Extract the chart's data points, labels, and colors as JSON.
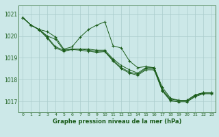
{
  "xlabel": "Graphe pression niveau de la mer (hPa)",
  "background_color": "#cce8e8",
  "line_color": "#1a5c1a",
  "grid_color_major": "#aacccc",
  "grid_color_minor": "#c8e0e0",
  "ylim": [
    1016.5,
    1021.4
  ],
  "xlim": [
    -0.5,
    23.5
  ],
  "yticks": [
    1017,
    1018,
    1019,
    1020,
    1021
  ],
  "xticks": [
    0,
    1,
    2,
    3,
    4,
    5,
    6,
    7,
    8,
    9,
    10,
    11,
    12,
    13,
    14,
    15,
    16,
    17,
    18,
    19,
    20,
    21,
    22,
    23
  ],
  "series": [
    [
      1020.85,
      1020.5,
      1020.3,
      1020.2,
      1019.95,
      1019.4,
      1019.5,
      1019.95,
      1020.3,
      1020.5,
      1020.65,
      1019.55,
      1019.45,
      1018.85,
      1018.55,
      1018.6,
      1018.55,
      1017.65,
      1017.15,
      1017.05,
      1017.05,
      1017.3,
      1017.4,
      1017.4
    ],
    [
      1020.85,
      1020.5,
      1020.3,
      1020.0,
      1019.85,
      1019.35,
      1019.4,
      1019.4,
      1019.4,
      1019.35,
      1019.35,
      1018.95,
      1018.65,
      1018.45,
      1018.3,
      1018.55,
      1018.55,
      1017.55,
      1017.1,
      1017.05,
      1017.05,
      1017.3,
      1017.4,
      1017.4
    ],
    [
      1020.85,
      1020.5,
      1020.3,
      1019.95,
      1019.5,
      1019.35,
      1019.4,
      1019.4,
      1019.35,
      1019.3,
      1019.3,
      1018.9,
      1018.55,
      1018.35,
      1018.25,
      1018.5,
      1018.5,
      1017.5,
      1017.05,
      1017.0,
      1017.0,
      1017.25,
      1017.38,
      1017.38
    ],
    [
      1020.85,
      1020.5,
      1020.28,
      1019.9,
      1019.45,
      1019.3,
      1019.38,
      1019.35,
      1019.3,
      1019.25,
      1019.28,
      1018.85,
      1018.5,
      1018.3,
      1018.2,
      1018.45,
      1018.45,
      1017.48,
      1017.02,
      1016.98,
      1016.98,
      1017.22,
      1017.35,
      1017.35
    ]
  ]
}
